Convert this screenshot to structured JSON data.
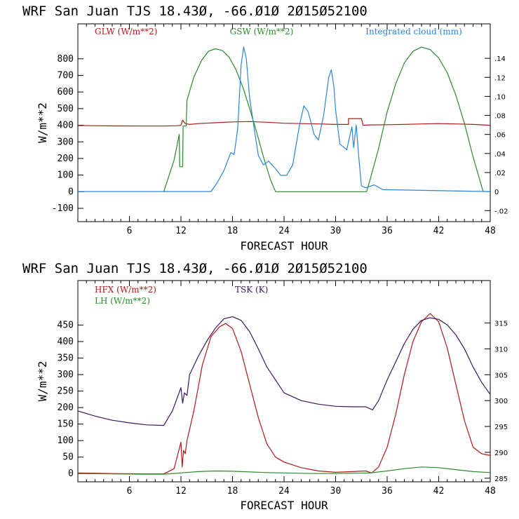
{
  "chart_data": [
    {
      "type": "line",
      "title": "WRF  San Juan TJS  18.43Ø, -66.Ø1Ø  2Ø15Ø52100",
      "xlabel": "FORECAST HOUR",
      "ylabel": "W/m**2",
      "xlim": [
        0,
        48
      ],
      "xticks": [
        "6",
        "12",
        "18",
        "24",
        "30",
        "36",
        "42",
        "48"
      ],
      "ylim": [
        -180,
        1010
      ],
      "yticks": [
        "-100",
        "0",
        "100",
        "200",
        "300",
        "400",
        "500",
        "600",
        "700",
        "800"
      ],
      "y2lim": [
        -0.0316,
        0.1762
      ],
      "y2ticks": [
        "-.02",
        "0",
        ".02",
        ".04",
        ".06",
        ".08",
        ".10",
        ".12",
        ".14"
      ],
      "legend_placement": "top",
      "series": [
        {
          "name": "GLW (W/m**2)",
          "color": "#b01818",
          "axis": "left",
          "x": [
            0,
            4,
            8,
            10,
            11.5,
            12,
            12.2,
            12.5,
            13,
            14,
            16,
            18,
            20,
            22,
            24,
            26,
            28,
            30,
            31.5,
            31.5,
            33,
            33.2,
            34,
            36,
            38,
            40,
            42,
            44,
            46,
            48
          ],
          "y": [
            398,
            396,
            395,
            395,
            397,
            400,
            430,
            410,
            405,
            410,
            415,
            420,
            422,
            418,
            412,
            410,
            408,
            405,
            405,
            440,
            440,
            400,
            402,
            403,
            405,
            408,
            410,
            408,
            405,
            400
          ]
        },
        {
          "name": "GSW (W/m**2)",
          "color": "#2a8a2a",
          "axis": "left",
          "x": [
            10,
            11.2,
            11.8,
            11.85,
            12.2,
            12.25,
            12.6,
            12.7,
            13.5,
            14.4,
            15.2,
            16,
            16.8,
            17.6,
            18.4,
            19.2,
            20,
            20.8,
            21.6,
            22.4,
            23,
            33.6,
            34,
            35,
            36,
            37,
            38,
            39,
            40,
            41,
            42,
            43,
            44,
            45,
            46,
            47,
            47.2
          ],
          "y": [
            0,
            190,
            345,
            150,
            150,
            395,
            395,
            550,
            690,
            790,
            845,
            860,
            850,
            810,
            735,
            630,
            500,
            360,
            210,
            75,
            0,
            0,
            70,
            260,
            480,
            650,
            775,
            845,
            870,
            855,
            805,
            715,
            580,
            410,
            210,
            30,
            0
          ]
        },
        {
          "name": "Integrated cloud (mm)",
          "color": "#2a84d8",
          "axis": "right",
          "x": [
            0,
            15.5,
            16.2,
            17,
            17.8,
            18.2,
            18.6,
            19,
            19.3,
            19.6,
            20,
            20.5,
            21,
            21.6,
            22.2,
            23,
            23.6,
            24.3,
            25,
            25.8,
            26.3,
            26.8,
            27.5,
            28,
            28.6,
            29.2,
            29.5,
            29.8,
            30,
            30.5,
            31.3,
            31.9,
            32.1,
            32.4,
            32.7,
            33,
            33.5,
            34.5,
            35.5,
            48
          ],
          "y": [
            0,
            0,
            0.009,
            0.022,
            0.041,
            0.039,
            0.066,
            0.133,
            0.152,
            0.14,
            0.098,
            0.068,
            0.038,
            0.028,
            0.032,
            0.024,
            0.017,
            0.017,
            0.028,
            0.07,
            0.09,
            0.084,
            0.06,
            0.054,
            0.08,
            0.12,
            0.128,
            0.11,
            0.086,
            0.05,
            0.044,
            0.068,
            0.046,
            0.07,
            0.036,
            0.006,
            0.004,
            0.007,
            0.002,
            0
          ]
        }
      ]
    },
    {
      "type": "line",
      "title": "WRF  San Juan TJS  18.43Ø, -66.Ø1Ø  2Ø15Ø52100",
      "xlabel": "FORECAST HOUR",
      "ylabel": "W/m**2",
      "xlim": [
        0,
        48
      ],
      "xticks": [
        "6",
        "12",
        "18",
        "24",
        "30",
        "36",
        "42",
        "48"
      ],
      "ylim": [
        -25,
        585
      ],
      "yticks": [
        "0",
        "50",
        "100",
        "150",
        "200",
        "250",
        "300",
        "350",
        "400",
        "450"
      ],
      "y2lim": [
        284.3,
        323.2
      ],
      "y2ticks": [
        "285",
        "290",
        "295",
        "300",
        "305",
        "310",
        "315"
      ],
      "legend_placement": "top-left",
      "series": [
        {
          "name": "HFX (W/m**2)",
          "color": "#b01818",
          "axis": "left",
          "x": [
            0,
            4,
            8,
            10,
            11.2,
            12,
            12.15,
            12.3,
            12.5,
            12.7,
            13.5,
            14.5,
            15.5,
            16.5,
            17.2,
            18,
            19,
            20,
            21,
            22,
            23,
            24,
            26,
            28,
            30,
            32,
            33.5,
            34.2,
            35,
            36,
            37,
            38,
            39,
            40,
            41,
            42,
            43,
            44,
            45,
            46,
            47,
            48
          ],
          "y": [
            2,
            0,
            -1,
            -1,
            15,
            95,
            20,
            70,
            60,
            100,
            190,
            330,
            415,
            445,
            455,
            440,
            370,
            270,
            170,
            90,
            50,
            35,
            18,
            8,
            4,
            6,
            8,
            2,
            20,
            80,
            180,
            300,
            400,
            460,
            485,
            460,
            380,
            270,
            160,
            80,
            60,
            55
          ]
        },
        {
          "name": "LH (W/m**2)",
          "color": "#2a8a2a",
          "axis": "left",
          "x": [
            0,
            4,
            8,
            10,
            12,
            14,
            16,
            18,
            20,
            22,
            24,
            26,
            28,
            30,
            32,
            34,
            36,
            38,
            40,
            42,
            44,
            46,
            48
          ],
          "y": [
            0,
            -1,
            -2,
            -2,
            2,
            6,
            8,
            7,
            5,
            3,
            2,
            1,
            0,
            0,
            1,
            2,
            8,
            15,
            20,
            18,
            12,
            6,
            3
          ]
        },
        {
          "name": "TSK (K)",
          "color": "#3a1560",
          "axis": "right",
          "x": [
            0,
            2,
            4,
            6,
            8,
            10,
            11,
            12,
            12.2,
            12.4,
            12.7,
            13,
            14,
            15,
            16,
            17,
            18,
            19,
            20,
            21,
            22,
            24,
            26,
            28,
            30,
            32,
            33.5,
            34.3,
            35,
            36,
            37,
            38,
            39,
            40,
            41,
            42,
            43,
            44,
            45,
            46,
            47,
            48
          ],
          "y": [
            298,
            297,
            296.2,
            295.7,
            295.3,
            295.2,
            298,
            302.5,
            299.5,
            301.5,
            301,
            305,
            308.5,
            311.5,
            314,
            315.8,
            316.2,
            315.5,
            313.3,
            310,
            306.5,
            301.5,
            300,
            299.3,
            298.9,
            298.8,
            298.8,
            298.2,
            300,
            304,
            307.5,
            311,
            313.8,
            315.5,
            316,
            315.7,
            314.6,
            312.7,
            310,
            306.5,
            303.5,
            301.2
          ]
        }
      ]
    }
  ]
}
